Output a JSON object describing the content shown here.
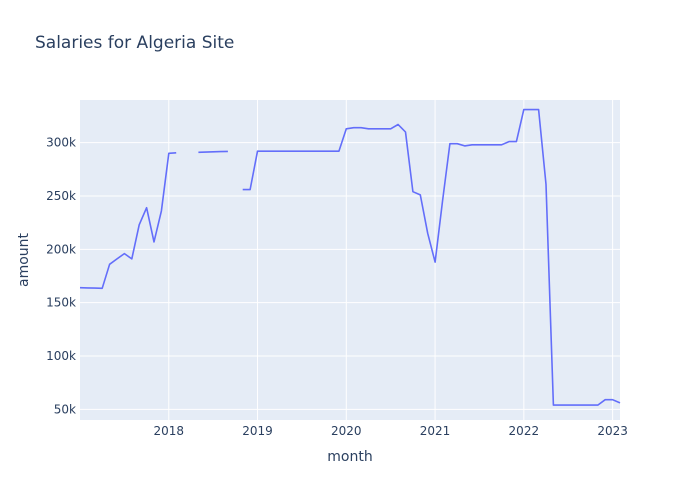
{
  "chart_data": {
    "type": "line",
    "title": "Salaries for Algeria Site",
    "xlabel": "month",
    "ylabel": "amount",
    "x_ticks": [
      "2018",
      "2019",
      "2020",
      "2021",
      "2022",
      "2023"
    ],
    "y_ticks": [
      "50k",
      "100k",
      "150k",
      "200k",
      "250k",
      "300k"
    ],
    "ylim": [
      40000,
      340000
    ],
    "xlim": [
      "2017-01-01",
      "2023-02-01"
    ],
    "grid": true,
    "colors": {
      "line": "#636efa",
      "plot_bg": "#e5ecf6",
      "grid": "#ffffff",
      "text": "#2a3f5f"
    },
    "series": [
      {
        "x": [
          "2017-01",
          "2017-02",
          "2017-03",
          "2017-04",
          "2017-05",
          "2017-06",
          "2017-07",
          "2017-08",
          "2017-09",
          "2017-10",
          "2017-11",
          "2017-12",
          "2018-01",
          "2018-02",
          "2018-03",
          "2018-04",
          "2018-05",
          "2018-06",
          "2018-07",
          "2018-08",
          "2018-09",
          "2018-10",
          "2018-11",
          "2018-12",
          "2019-01",
          "2019-02",
          "2019-03",
          "2019-04",
          "2019-05",
          "2019-06",
          "2019-07",
          "2019-08",
          "2019-09",
          "2019-10",
          "2019-11",
          "2019-12",
          "2020-01",
          "2020-02",
          "2020-03",
          "2020-04",
          "2020-05",
          "2020-06",
          "2020-07",
          "2020-08",
          "2020-09",
          "2020-10",
          "2020-11",
          "2020-12",
          "2021-01",
          "2021-02",
          "2021-03",
          "2021-04",
          "2021-05",
          "2021-06",
          "2021-07",
          "2021-08",
          "2021-09",
          "2021-10",
          "2021-11",
          "2021-12",
          "2022-01",
          "2022-02",
          "2022-03",
          "2022-04",
          "2022-05",
          "2022-06",
          "2022-07",
          "2022-08",
          "2022-09",
          "2022-10",
          "2022-11",
          "2022-12",
          "2023-01",
          "2023-02"
        ],
        "y": [
          164000,
          163800,
          163700,
          163500,
          186000,
          191000,
          196000,
          191000,
          223000,
          239000,
          207000,
          236000,
          290000,
          290500,
          null,
          null,
          291000,
          291200,
          291400,
          291600,
          291800,
          null,
          256000,
          256000,
          292000,
          292000,
          292000,
          292000,
          292000,
          292000,
          292000,
          292000,
          292000,
          292000,
          292000,
          292000,
          313000,
          314000,
          314000,
          313000,
          313000,
          313000,
          313000,
          317000,
          310000,
          254000,
          251000,
          215000,
          188000,
          245000,
          299000,
          299000,
          297000,
          298000,
          298000,
          298000,
          298000,
          298000,
          301000,
          301000,
          331000,
          331000,
          331000,
          261000,
          54000,
          54000,
          54000,
          54000,
          54000,
          54000,
          54000,
          59000,
          59000,
          56000
        ]
      }
    ]
  }
}
